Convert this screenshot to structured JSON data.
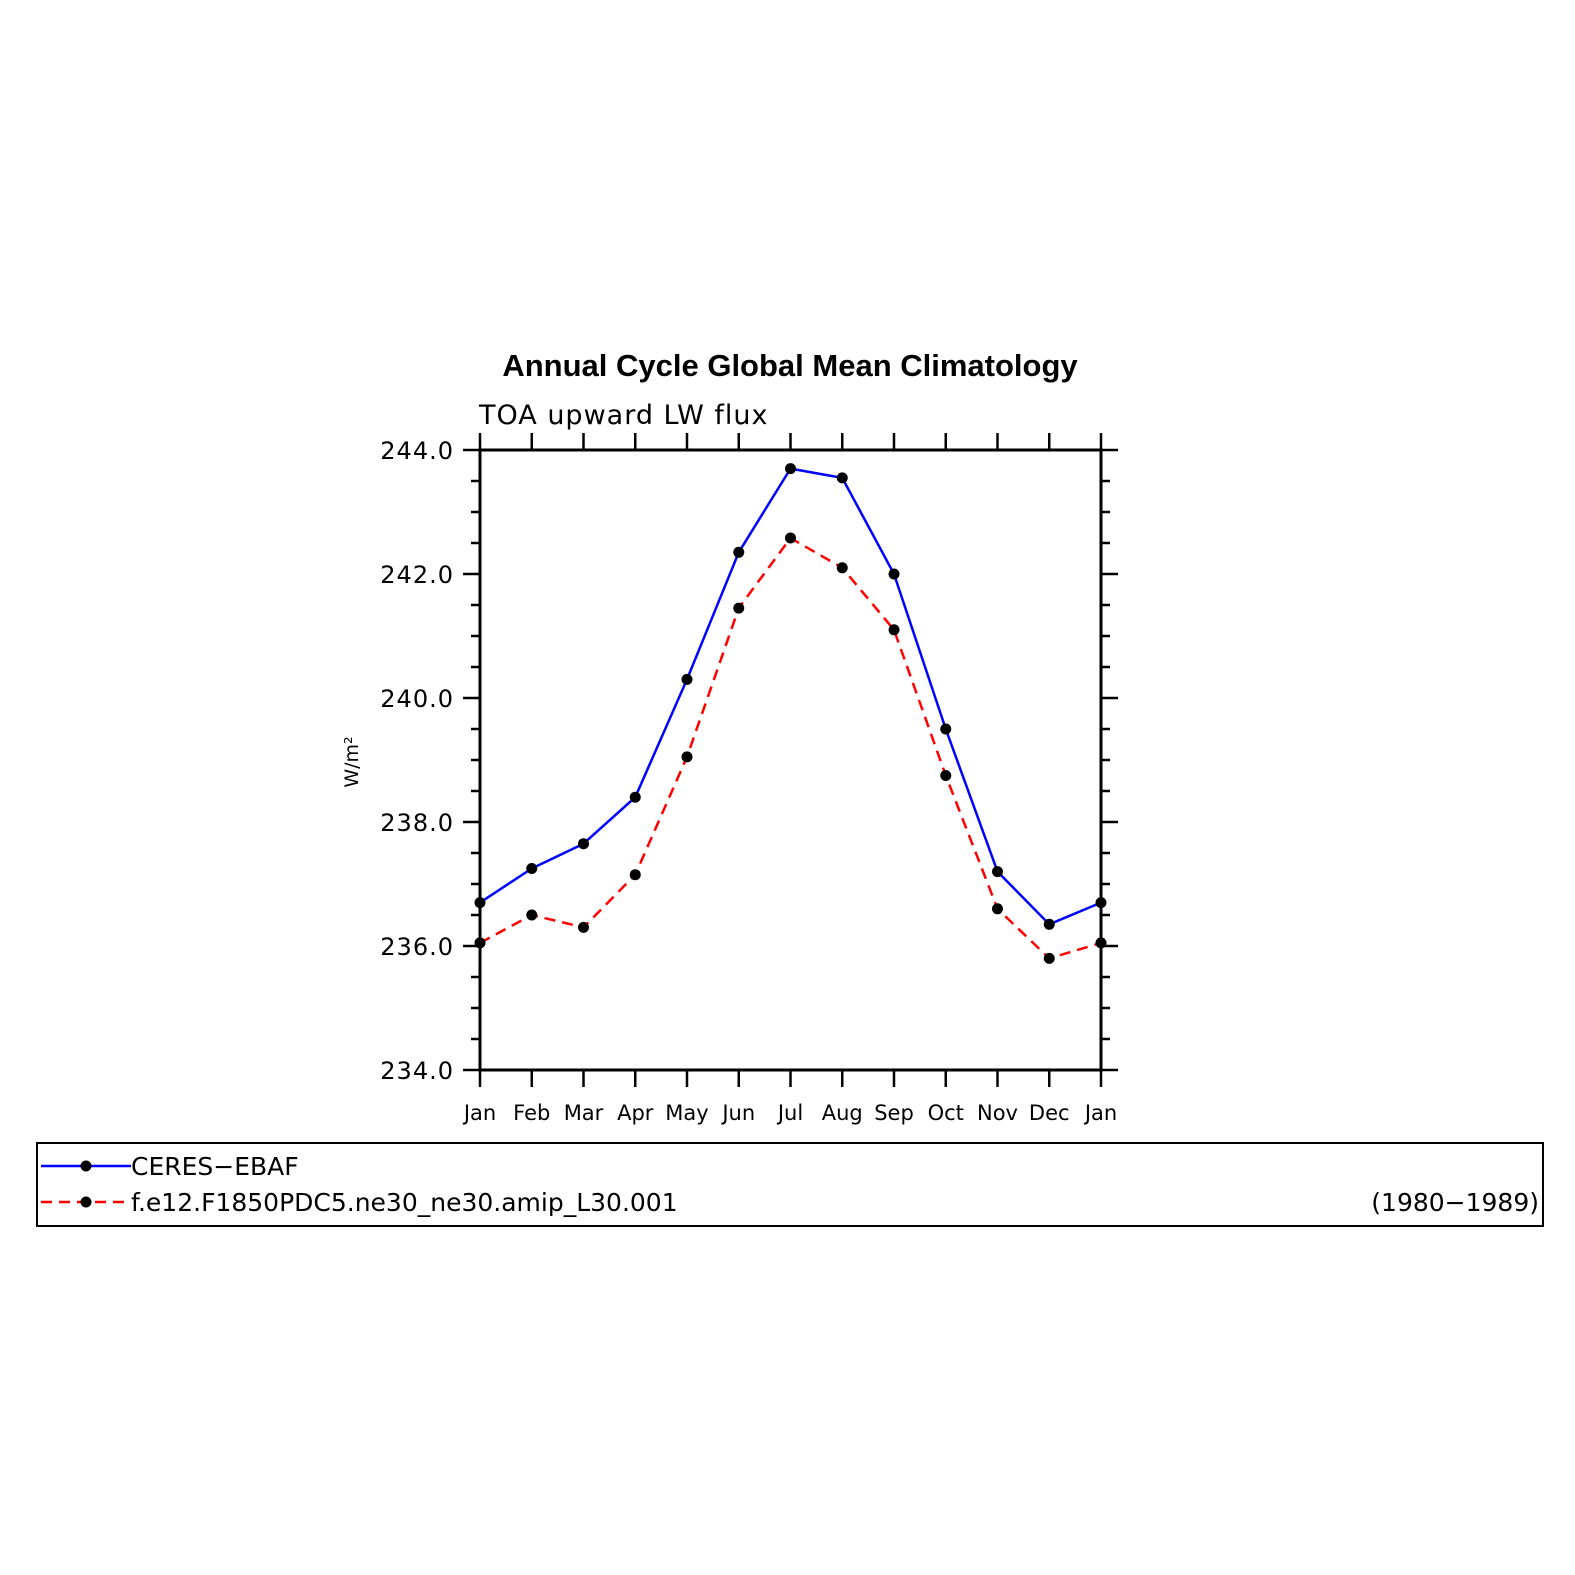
{
  "chart_data": {
    "type": "line",
    "title": "Annual Cycle Global Mean Climatology",
    "subtitle": "TOA upward LW flux",
    "xlabel": "",
    "ylabel": "W/m²",
    "categories": [
      "Jan",
      "Feb",
      "Mar",
      "Apr",
      "May",
      "Jun",
      "Jul",
      "Aug",
      "Sep",
      "Oct",
      "Nov",
      "Dec",
      "Jan"
    ],
    "ylim": [
      234.0,
      244.0
    ],
    "yticks": [
      "234.0",
      "236.0",
      "238.0",
      "240.0",
      "242.0",
      "244.0"
    ],
    "series": [
      {
        "name": "CERES−EBAF",
        "color": "#0000ff",
        "line_style": "solid",
        "values": [
          236.7,
          237.25,
          237.65,
          238.4,
          240.3,
          242.35,
          243.7,
          243.55,
          242.0,
          239.5,
          237.2,
          236.35,
          236.7
        ]
      },
      {
        "name": "f.e12.F1850PDC5.ne30_ne30.amip_L30.001",
        "color": "#ff0000",
        "line_style": "dashed",
        "values": [
          236.05,
          236.5,
          236.3,
          237.15,
          239.05,
          241.45,
          242.58,
          242.1,
          241.1,
          238.75,
          236.6,
          235.8,
          236.05
        ]
      }
    ],
    "legend": {
      "placement": "bottom",
      "period": "(1980−1989)"
    },
    "grid": false
  }
}
